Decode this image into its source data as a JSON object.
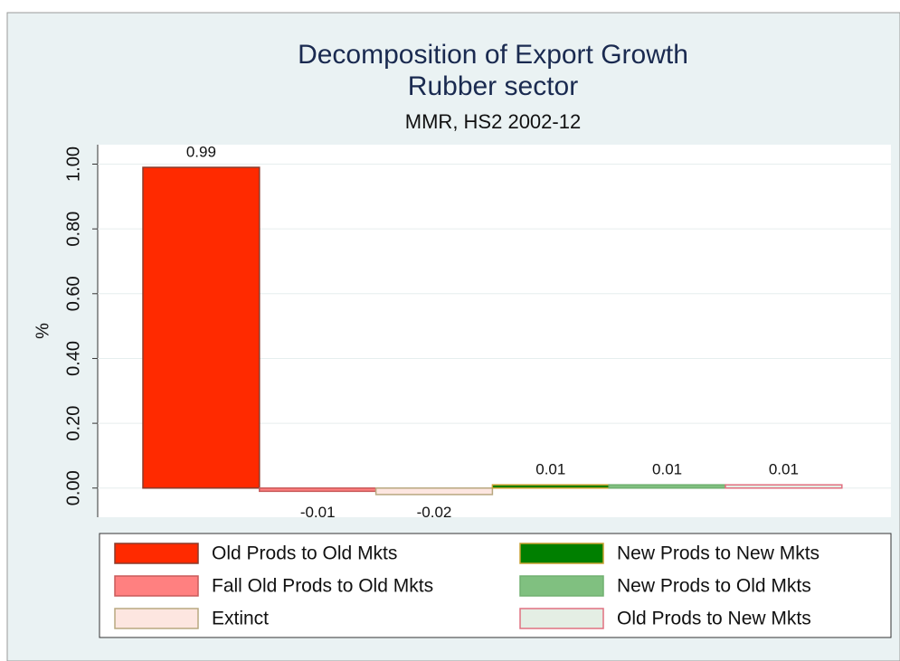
{
  "chart_data": {
    "type": "bar",
    "title": "Decomposition of Export Growth",
    "title2": "Rubber sector",
    "subtitle": "MMR, HS2 2002-12",
    "ylabel": "%",
    "ylim": [
      -0.09,
      1.06
    ],
    "yticks": [
      {
        "value": 0,
        "label": "0.00"
      },
      {
        "value": 0.2,
        "label": "0.20"
      },
      {
        "value": 0.4,
        "label": "0.40"
      },
      {
        "value": 0.6,
        "label": "0.60"
      },
      {
        "value": 0.8,
        "label": "0.80"
      },
      {
        "value": 1,
        "label": "1.00"
      }
    ],
    "grid": true,
    "series": [
      {
        "name": "Old Prods to Old Mkts",
        "color": "#ff2a00",
        "edgecolor": "#8a3a2a",
        "values": [
          0.99
        ]
      },
      {
        "name": "Fall Old Prods to Old Mkts",
        "color": "#ff8080",
        "edgecolor": "#c85a5a",
        "values": [
          -0.01
        ]
      },
      {
        "name": "Extinct",
        "color": "#fde6e0",
        "edgecolor": "#b8a880",
        "values": [
          -0.02
        ]
      },
      {
        "name": "New Prods to New Mkts",
        "color": "#007f00",
        "edgecolor": "#c8a030",
        "values": [
          0.01
        ]
      },
      {
        "name": "New Prods to Old Mkts",
        "color": "#80c080",
        "edgecolor": "#70b070",
        "values": [
          0.01
        ]
      },
      {
        "name": "Old Prods to New Mkts",
        "color": "#e4eee4",
        "edgecolor": "#e07080",
        "values": [
          0.01
        ]
      }
    ]
  }
}
